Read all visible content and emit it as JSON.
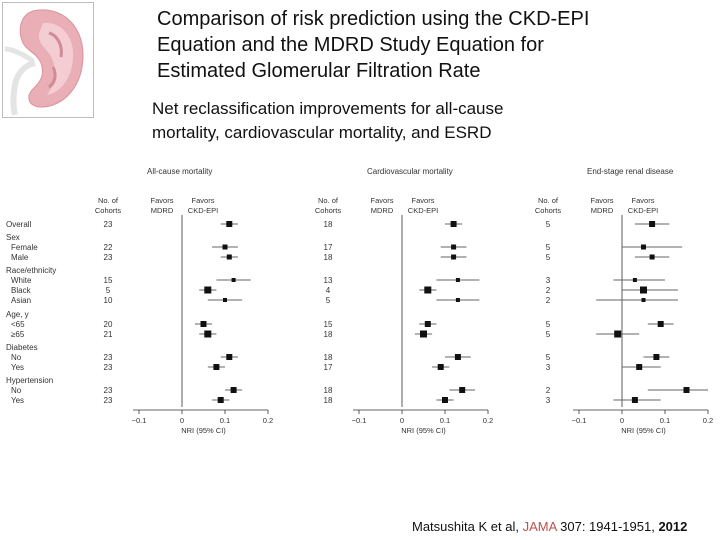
{
  "title_lines": [
    "Comparison of risk prediction using the CKD-EPI",
    "Equation and the MDRD Study Equation for",
    "Estimated Glomerular Filtration Rate"
  ],
  "subtitle_lines": [
    "Net reclassification improvements for all-cause",
    "mortality, cardiovascular mortality, and ESRD"
  ],
  "citation": {
    "authors": "Matsushita K et al, ",
    "journal": "JAMA",
    "rest": " 307: 1941-1951, ",
    "year": "2012"
  },
  "colors": {
    "marker": "#111111",
    "ci_line": "#666666",
    "axis": "#333333",
    "citation_journal": "#c0504d"
  },
  "chart_data": {
    "type": "forest",
    "xlabel": "NRI (95% CI)",
    "xticks": [
      "−0.1",
      "0",
      "0.1",
      "0.2"
    ],
    "xtick_values": [
      -0.1,
      0,
      0.1,
      0.2
    ],
    "xlim": [
      -0.1,
      0.2
    ],
    "col_header_cohorts": [
      "No. of",
      "Cohorts"
    ],
    "col_header_mdrd": [
      "Favors",
      "MDRD"
    ],
    "col_header_ckdepi": [
      "Favors",
      "CKD-EPI"
    ],
    "groups": [
      "Sex",
      "Race/ethnicity",
      "Age, y",
      "Diabetes",
      "Hypertension"
    ],
    "rows": [
      {
        "label": "Overall",
        "group": null
      },
      {
        "label": "Female",
        "group": "Sex"
      },
      {
        "label": "Male",
        "group": "Sex"
      },
      {
        "label": "White",
        "group": "Race/ethnicity"
      },
      {
        "label": "Black",
        "group": "Race/ethnicity"
      },
      {
        "label": "Asian",
        "group": "Race/ethnicity"
      },
      {
        "label": "<65",
        "group": "Age, y"
      },
      {
        "label": "≥65",
        "group": "Age, y"
      },
      {
        "label": "No",
        "group": "Diabetes"
      },
      {
        "label": "Yes",
        "group": "Diabetes"
      },
      {
        "label": "No",
        "group": "Hypertension"
      },
      {
        "label": "Yes",
        "group": "Hypertension"
      }
    ],
    "panels": [
      {
        "title": "All-cause mortality",
        "cohorts": [
          "23",
          "22",
          "23",
          "15",
          "5",
          "10",
          "20",
          "21",
          "23",
          "23",
          "23",
          "23"
        ],
        "nri": [
          0.11,
          0.1,
          0.11,
          0.12,
          0.06,
          0.1,
          0.05,
          0.06,
          0.11,
          0.08,
          0.12,
          0.09
        ],
        "ci_low": [
          0.09,
          0.07,
          0.09,
          0.08,
          0.04,
          0.06,
          0.03,
          0.04,
          0.09,
          0.06,
          0.1,
          0.07
        ],
        "ci_high": [
          0.13,
          0.13,
          0.13,
          0.16,
          0.08,
          0.14,
          0.07,
          0.08,
          0.13,
          0.1,
          0.14,
          0.11
        ]
      },
      {
        "title": "Cardiovascular mortality",
        "cohorts": [
          "18",
          "17",
          "18",
          "13",
          "4",
          "5",
          "15",
          "18",
          "18",
          "17",
          "18",
          "18"
        ],
        "nri": [
          0.12,
          0.12,
          0.12,
          0.13,
          0.06,
          0.13,
          0.06,
          0.05,
          0.13,
          0.09,
          0.14,
          0.1
        ],
        "ci_low": [
          0.1,
          0.09,
          0.09,
          0.08,
          0.04,
          0.08,
          0.04,
          0.03,
          0.1,
          0.07,
          0.11,
          0.08
        ],
        "ci_high": [
          0.14,
          0.15,
          0.15,
          0.18,
          0.08,
          0.18,
          0.08,
          0.07,
          0.16,
          0.11,
          0.17,
          0.12
        ]
      },
      {
        "title": "End-stage renal disease",
        "cohorts": [
          "5",
          "5",
          "5",
          "3",
          "2",
          "2",
          "5",
          "5",
          "5",
          "3",
          "2",
          "3"
        ],
        "nri": [
          0.07,
          0.05,
          0.07,
          0.03,
          0.05,
          0.05,
          0.09,
          -0.01,
          0.08,
          0.04,
          0.15,
          0.03
        ],
        "ci_low": [
          0.03,
          0.0,
          0.03,
          -0.02,
          0.0,
          -0.06,
          0.06,
          -0.06,
          0.05,
          0.0,
          0.06,
          -0.02
        ],
        "ci_high": [
          0.11,
          0.14,
          0.11,
          0.1,
          0.13,
          0.13,
          0.12,
          0.04,
          0.11,
          0.09,
          0.2,
          0.09
        ]
      }
    ]
  }
}
